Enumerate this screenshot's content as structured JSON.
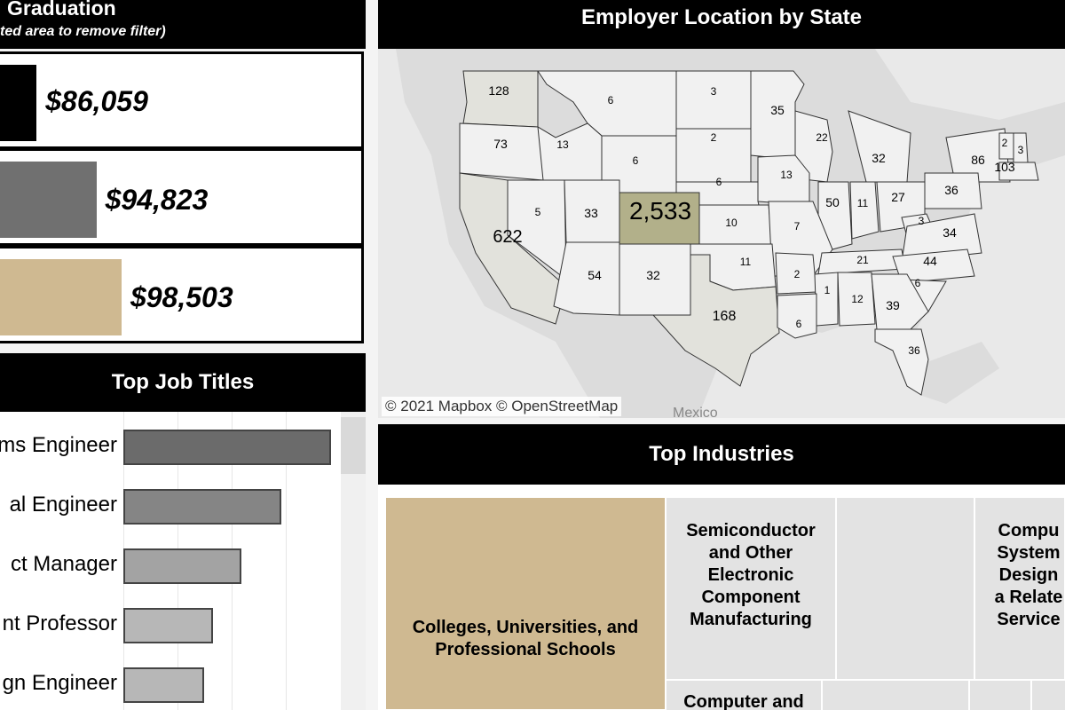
{
  "salary": {
    "title": "Graduation",
    "subtitle": "ted area to remove filter)",
    "values": [
      "$86,059",
      "$94,823",
      "$98,503"
    ]
  },
  "colors": {
    "black": "#000000",
    "gray": "#707070",
    "gold": "#cfb991",
    "khaki": "#b2b08a",
    "state_default": "#f1f1f1",
    "state_light": "#e2e2dc"
  },
  "job_titles": {
    "title": "Top Job Titles",
    "labels": [
      "ms Engineer",
      "al Engineer",
      "ct Manager",
      "nt Professor",
      "gn Engineer"
    ]
  },
  "map": {
    "title": "Employer Location by State",
    "credit": "© 2021 Mapbox  © OpenStreetMap",
    "country_label": "Mexico",
    "labels": [
      "128",
      "6",
      "3",
      "35",
      "73",
      "13",
      "2",
      "22",
      "6",
      "32",
      "86",
      "2",
      "3",
      "103",
      "13",
      "36",
      "6",
      "5",
      "33",
      "2,533",
      "50",
      "11",
      "27",
      "10",
      "7",
      "3",
      "34",
      "622",
      "21",
      "44",
      "11",
      "54",
      "32",
      "2",
      "6",
      "1",
      "12",
      "39",
      "168",
      "6",
      "36"
    ]
  },
  "industries": {
    "title": "Top Industries",
    "cells": [
      "Colleges, Universities, and Professional Schools",
      "Semiconductor and Other Electronic Component Manufacturing",
      "",
      "Compu System Design a Relate Service",
      "Computer and"
    ]
  },
  "chart_data": [
    {
      "type": "bar",
      "title": "Graduation",
      "values": [
        86059,
        94823,
        98503
      ],
      "labels": [
        "$86,059",
        "$94,823",
        "$98,503"
      ]
    },
    {
      "type": "bar",
      "title": "Top Job Titles",
      "categories": [
        "ms Engineer",
        "al Engineer",
        "ct Manager",
        "nt Professor",
        "gn Engineer"
      ],
      "values": [
        100,
        76,
        57,
        43,
        39
      ]
    },
    {
      "type": "heatmap",
      "title": "Employer Location by State",
      "values": [
        128,
        6,
        3,
        35,
        73,
        13,
        2,
        22,
        6,
        32,
        86,
        2,
        3,
        103,
        13,
        36,
        6,
        5,
        33,
        2533,
        50,
        11,
        27,
        10,
        7,
        3,
        34,
        622,
        21,
        44,
        11,
        54,
        32,
        2,
        6,
        1,
        12,
        39,
        168,
        6,
        36
      ]
    }
  ]
}
